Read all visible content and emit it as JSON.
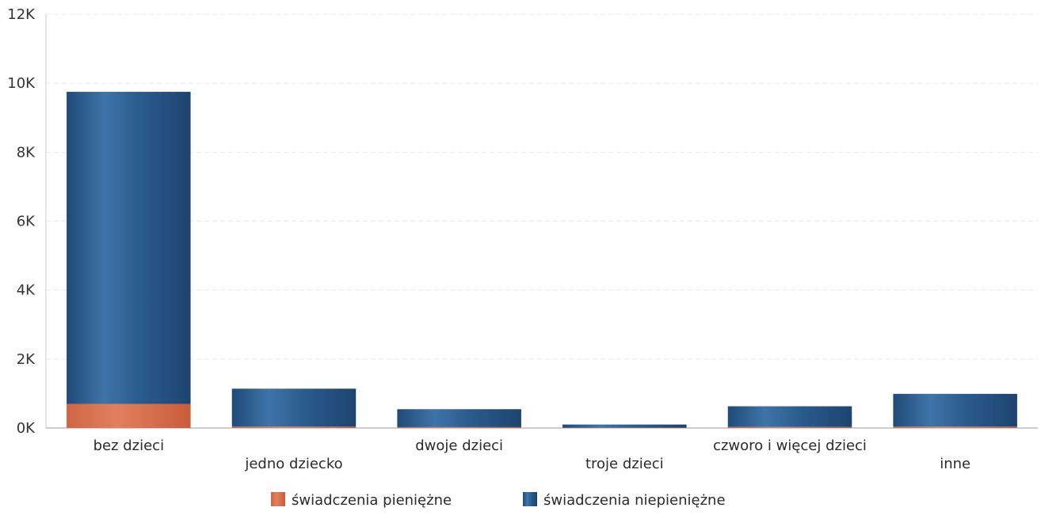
{
  "chart_data": {
    "type": "bar",
    "stacked": true,
    "title": "",
    "xlabel": "",
    "ylabel": "",
    "categories": [
      "bez dzieci",
      "jedno dziecko",
      "dwoje dzieci",
      "troje dzieci",
      "czworo i więcej dzieci",
      "inne"
    ],
    "series": [
      {
        "name": "świadczenia pieniężne",
        "color": "#d9704e",
        "values": [
          700,
          40,
          25,
          10,
          30,
          40
        ]
      },
      {
        "name": "świadczenia niepieniężne",
        "color": "#2f5f8f",
        "values": [
          9050,
          1100,
          520,
          90,
          600,
          950
        ]
      }
    ],
    "ylim": [
      0,
      12000
    ],
    "yticks": [
      0,
      2000,
      4000,
      6000,
      8000,
      10000,
      12000
    ],
    "ytick_labels": [
      "0K",
      "2K",
      "4K",
      "6K",
      "8K",
      "10K",
      "12K"
    ],
    "grid": true,
    "legend": "bottom"
  }
}
